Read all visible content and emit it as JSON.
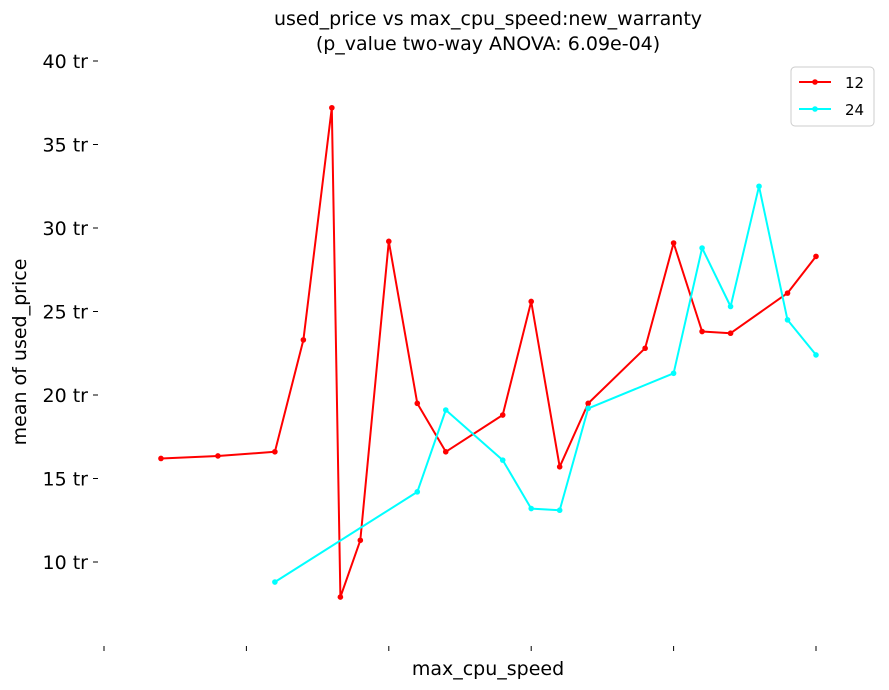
{
  "chart_data": {
    "type": "line",
    "title": "used_price vs max_cpu_speed:new_warranty",
    "subtitle": "(p_value two-way ANOVA: 6.09e-04)",
    "xlabel": "max_cpu_speed",
    "ylabel": "mean of used_price",
    "ylim": [
      4.5,
      40
    ],
    "xlim": [
      0.2,
      3.4
    ],
    "yticks": [
      10,
      15,
      20,
      25,
      30,
      35,
      40
    ],
    "ytick_labels": [
      "10 tr",
      "15 tr",
      "20 tr",
      "25 tr",
      "30 tr",
      "35 tr",
      "40 tr"
    ],
    "xticks": [
      0.5,
      1.0,
      1.5,
      2.0,
      2.5,
      3.0
    ],
    "grid": false,
    "legend_position": "top-right",
    "series": [
      {
        "name": "12",
        "color": "#ff0000",
        "points": [
          [
            0.7,
            16.2
          ],
          [
            0.9,
            16.35
          ],
          [
            1.1,
            16.6
          ],
          [
            1.2,
            23.3
          ],
          [
            1.3,
            37.2
          ],
          [
            1.33,
            7.9
          ],
          [
            1.4,
            11.3
          ],
          [
            1.5,
            29.2
          ],
          [
            1.6,
            19.5
          ],
          [
            1.7,
            16.6
          ],
          [
            1.9,
            18.8
          ],
          [
            2.0,
            25.6
          ],
          [
            2.1,
            15.7
          ],
          [
            2.2,
            19.5
          ],
          [
            2.4,
            22.8
          ],
          [
            2.5,
            29.1
          ],
          [
            2.6,
            23.8
          ],
          [
            2.7,
            23.7
          ],
          [
            2.9,
            26.1
          ],
          [
            3.0,
            28.3
          ]
        ]
      },
      {
        "name": "24",
        "color": "#00ffff",
        "points": [
          [
            1.1,
            8.8
          ],
          [
            1.6,
            14.2
          ],
          [
            1.7,
            19.1
          ],
          [
            1.9,
            16.1
          ],
          [
            2.0,
            13.2
          ],
          [
            2.1,
            13.1
          ],
          [
            2.2,
            19.2
          ],
          [
            2.5,
            21.3
          ],
          [
            2.6,
            28.8
          ],
          [
            2.7,
            25.3
          ],
          [
            2.8,
            32.5
          ],
          [
            2.9,
            24.5
          ],
          [
            3.0,
            22.4
          ]
        ]
      }
    ]
  }
}
